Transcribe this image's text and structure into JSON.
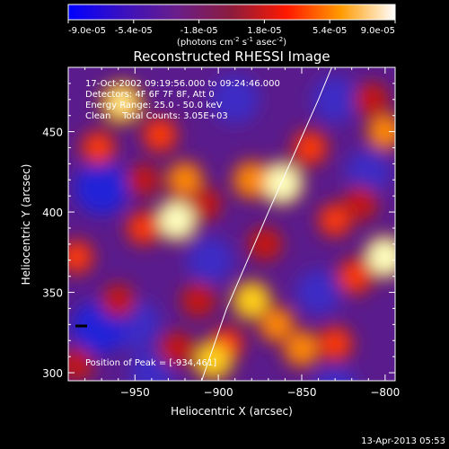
{
  "chart_data": {
    "type": "heatmap",
    "title": "Reconstructed RHESSI Image",
    "xlabel": "Heliocentric X (arcsec)",
    "ylabel": "Heliocentric Y (arcsec)",
    "xlim": [
      -990,
      -794
    ],
    "ylim": [
      295,
      490
    ],
    "x_ticks": [
      -950,
      -900,
      -850,
      -800
    ],
    "y_ticks": [
      300,
      350,
      400,
      450
    ],
    "colorbar": {
      "ticks": [
        "-9.0e-05",
        "-5.4e-05",
        "-1.8e-05",
        "1.8e-05",
        "5.4e-05",
        "9.0e-05"
      ],
      "units_base": "(photons cm",
      "units_exp1": "-2",
      "units_mid": " s",
      "units_exp2": "-1",
      "units_tail": " asec",
      "units_exp3": "-2",
      "units_close": ")",
      "colors": [
        "#0000ff",
        "#3a10c0",
        "#6a1e8a",
        "#8c1c3c",
        "#ff1800",
        "#ff9a00",
        "#ffffff"
      ]
    },
    "annotations": [
      "17-Oct-2002 09:19:56.000 to 09:24:46.000",
      "Detectors: 4F 6F 7F 8F, Att 0",
      "Energy Range: 25.0 - 50.0 keV",
      "Clean    Total Counts: 3.05E+03"
    ],
    "peak_label": "Position of Peak = [-934,461]",
    "peak": [
      -934,
      461
    ],
    "limb_arc": [
      [
        -910,
        295
      ],
      [
        -895,
        340
      ],
      [
        -870,
        400
      ],
      [
        -840,
        470
      ],
      [
        -832,
        490
      ]
    ],
    "blobs": [
      {
        "x": -958,
        "y": 468,
        "v": 0.9
      },
      {
        "x": -972,
        "y": 440,
        "v": 0.55
      },
      {
        "x": -935,
        "y": 448,
        "v": 0.6
      },
      {
        "x": -920,
        "y": 420,
        "v": 0.7
      },
      {
        "x": -925,
        "y": 395,
        "v": 0.95
      },
      {
        "x": -945,
        "y": 390,
        "v": 0.55
      },
      {
        "x": -908,
        "y": 405,
        "v": 0.45
      },
      {
        "x": -862,
        "y": 418,
        "v": 1.0
      },
      {
        "x": -880,
        "y": 420,
        "v": 0.75
      },
      {
        "x": -845,
        "y": 440,
        "v": 0.6
      },
      {
        "x": -872,
        "y": 380,
        "v": 0.5
      },
      {
        "x": -830,
        "y": 395,
        "v": 0.55
      },
      {
        "x": -815,
        "y": 405,
        "v": 0.5
      },
      {
        "x": -800,
        "y": 372,
        "v": 0.95
      },
      {
        "x": -818,
        "y": 360,
        "v": 0.6
      },
      {
        "x": -880,
        "y": 345,
        "v": 0.8
      },
      {
        "x": -865,
        "y": 330,
        "v": 0.65
      },
      {
        "x": -895,
        "y": 318,
        "v": 0.55
      },
      {
        "x": -850,
        "y": 315,
        "v": 0.7
      },
      {
        "x": -830,
        "y": 318,
        "v": 0.6
      },
      {
        "x": -903,
        "y": 308,
        "v": 0.85
      },
      {
        "x": -925,
        "y": 315,
        "v": 0.5
      },
      {
        "x": -960,
        "y": 345,
        "v": 0.45
      },
      {
        "x": -985,
        "y": 372,
        "v": 0.55
      },
      {
        "x": -800,
        "y": 450,
        "v": 0.7
      },
      {
        "x": -808,
        "y": 470,
        "v": 0.5
      },
      {
        "x": -912,
        "y": 345,
        "v": 0.5
      },
      {
        "x": -985,
        "y": 305,
        "v": 0.45
      },
      {
        "x": -945,
        "y": 420,
        "v": 0.4
      }
    ],
    "voids": [
      {
        "x": -970,
        "y": 415,
        "v": 1.0
      },
      {
        "x": -950,
        "y": 330,
        "v": 0.85
      },
      {
        "x": -972,
        "y": 328,
        "v": 1.0
      },
      {
        "x": -890,
        "y": 470,
        "v": 0.7
      },
      {
        "x": -830,
        "y": 470,
        "v": 0.6
      },
      {
        "x": -905,
        "y": 370,
        "v": 0.6
      },
      {
        "x": -840,
        "y": 350,
        "v": 0.55
      },
      {
        "x": -810,
        "y": 425,
        "v": 0.5
      },
      {
        "x": -940,
        "y": 300,
        "v": 0.5
      },
      {
        "x": -830,
        "y": 290,
        "v": 0.5
      }
    ]
  },
  "footer": {
    "date": "13-Apr-2013 05:53"
  }
}
